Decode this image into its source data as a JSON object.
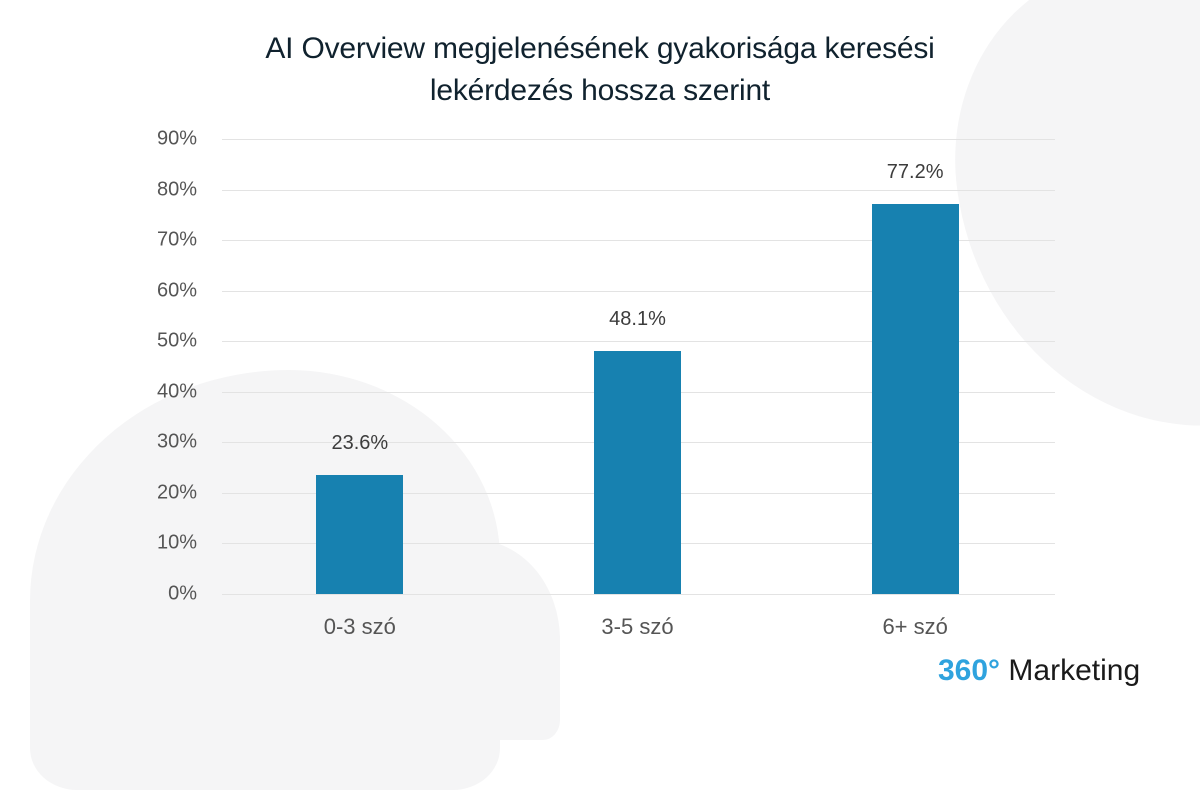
{
  "title_line1": "AI Overview megjelenésének gyakorisága keresési",
  "title_line2": "lekérdezés hossza szerint",
  "brand": {
    "number": "360°",
    "name": "Marketing",
    "accent": "#2fa3de"
  },
  "bar_color": "#1781b0",
  "y_ticks": [
    "0%",
    "10%",
    "20%",
    "30%",
    "40%",
    "50%",
    "60%",
    "70%",
    "80%",
    "90%"
  ],
  "bars": [
    {
      "category": "0-3 szó",
      "value": 23.6,
      "label": "23.6%"
    },
    {
      "category": "3-5 szó",
      "value": 48.1,
      "label": "48.1%"
    },
    {
      "category": "6+ szó",
      "value": 77.2,
      "label": "77.2%"
    }
  ],
  "chart_data": {
    "type": "bar",
    "title": "AI Overview megjelenésének gyakorisága keresési lekérdezés hossza szerint",
    "categories": [
      "0-3 szó",
      "3-5 szó",
      "6+ szó"
    ],
    "values": [
      23.6,
      48.1,
      77.2
    ],
    "data_labels": [
      "23.6%",
      "48.1%",
      "77.2%"
    ],
    "xlabel": "",
    "ylabel": "",
    "ylim": [
      0,
      90
    ],
    "yticks": [
      "0%",
      "10%",
      "20%",
      "30%",
      "40%",
      "50%",
      "60%",
      "70%",
      "80%",
      "90%"
    ],
    "grid": true,
    "legend": null,
    "annotations": [
      "360° Marketing"
    ]
  }
}
